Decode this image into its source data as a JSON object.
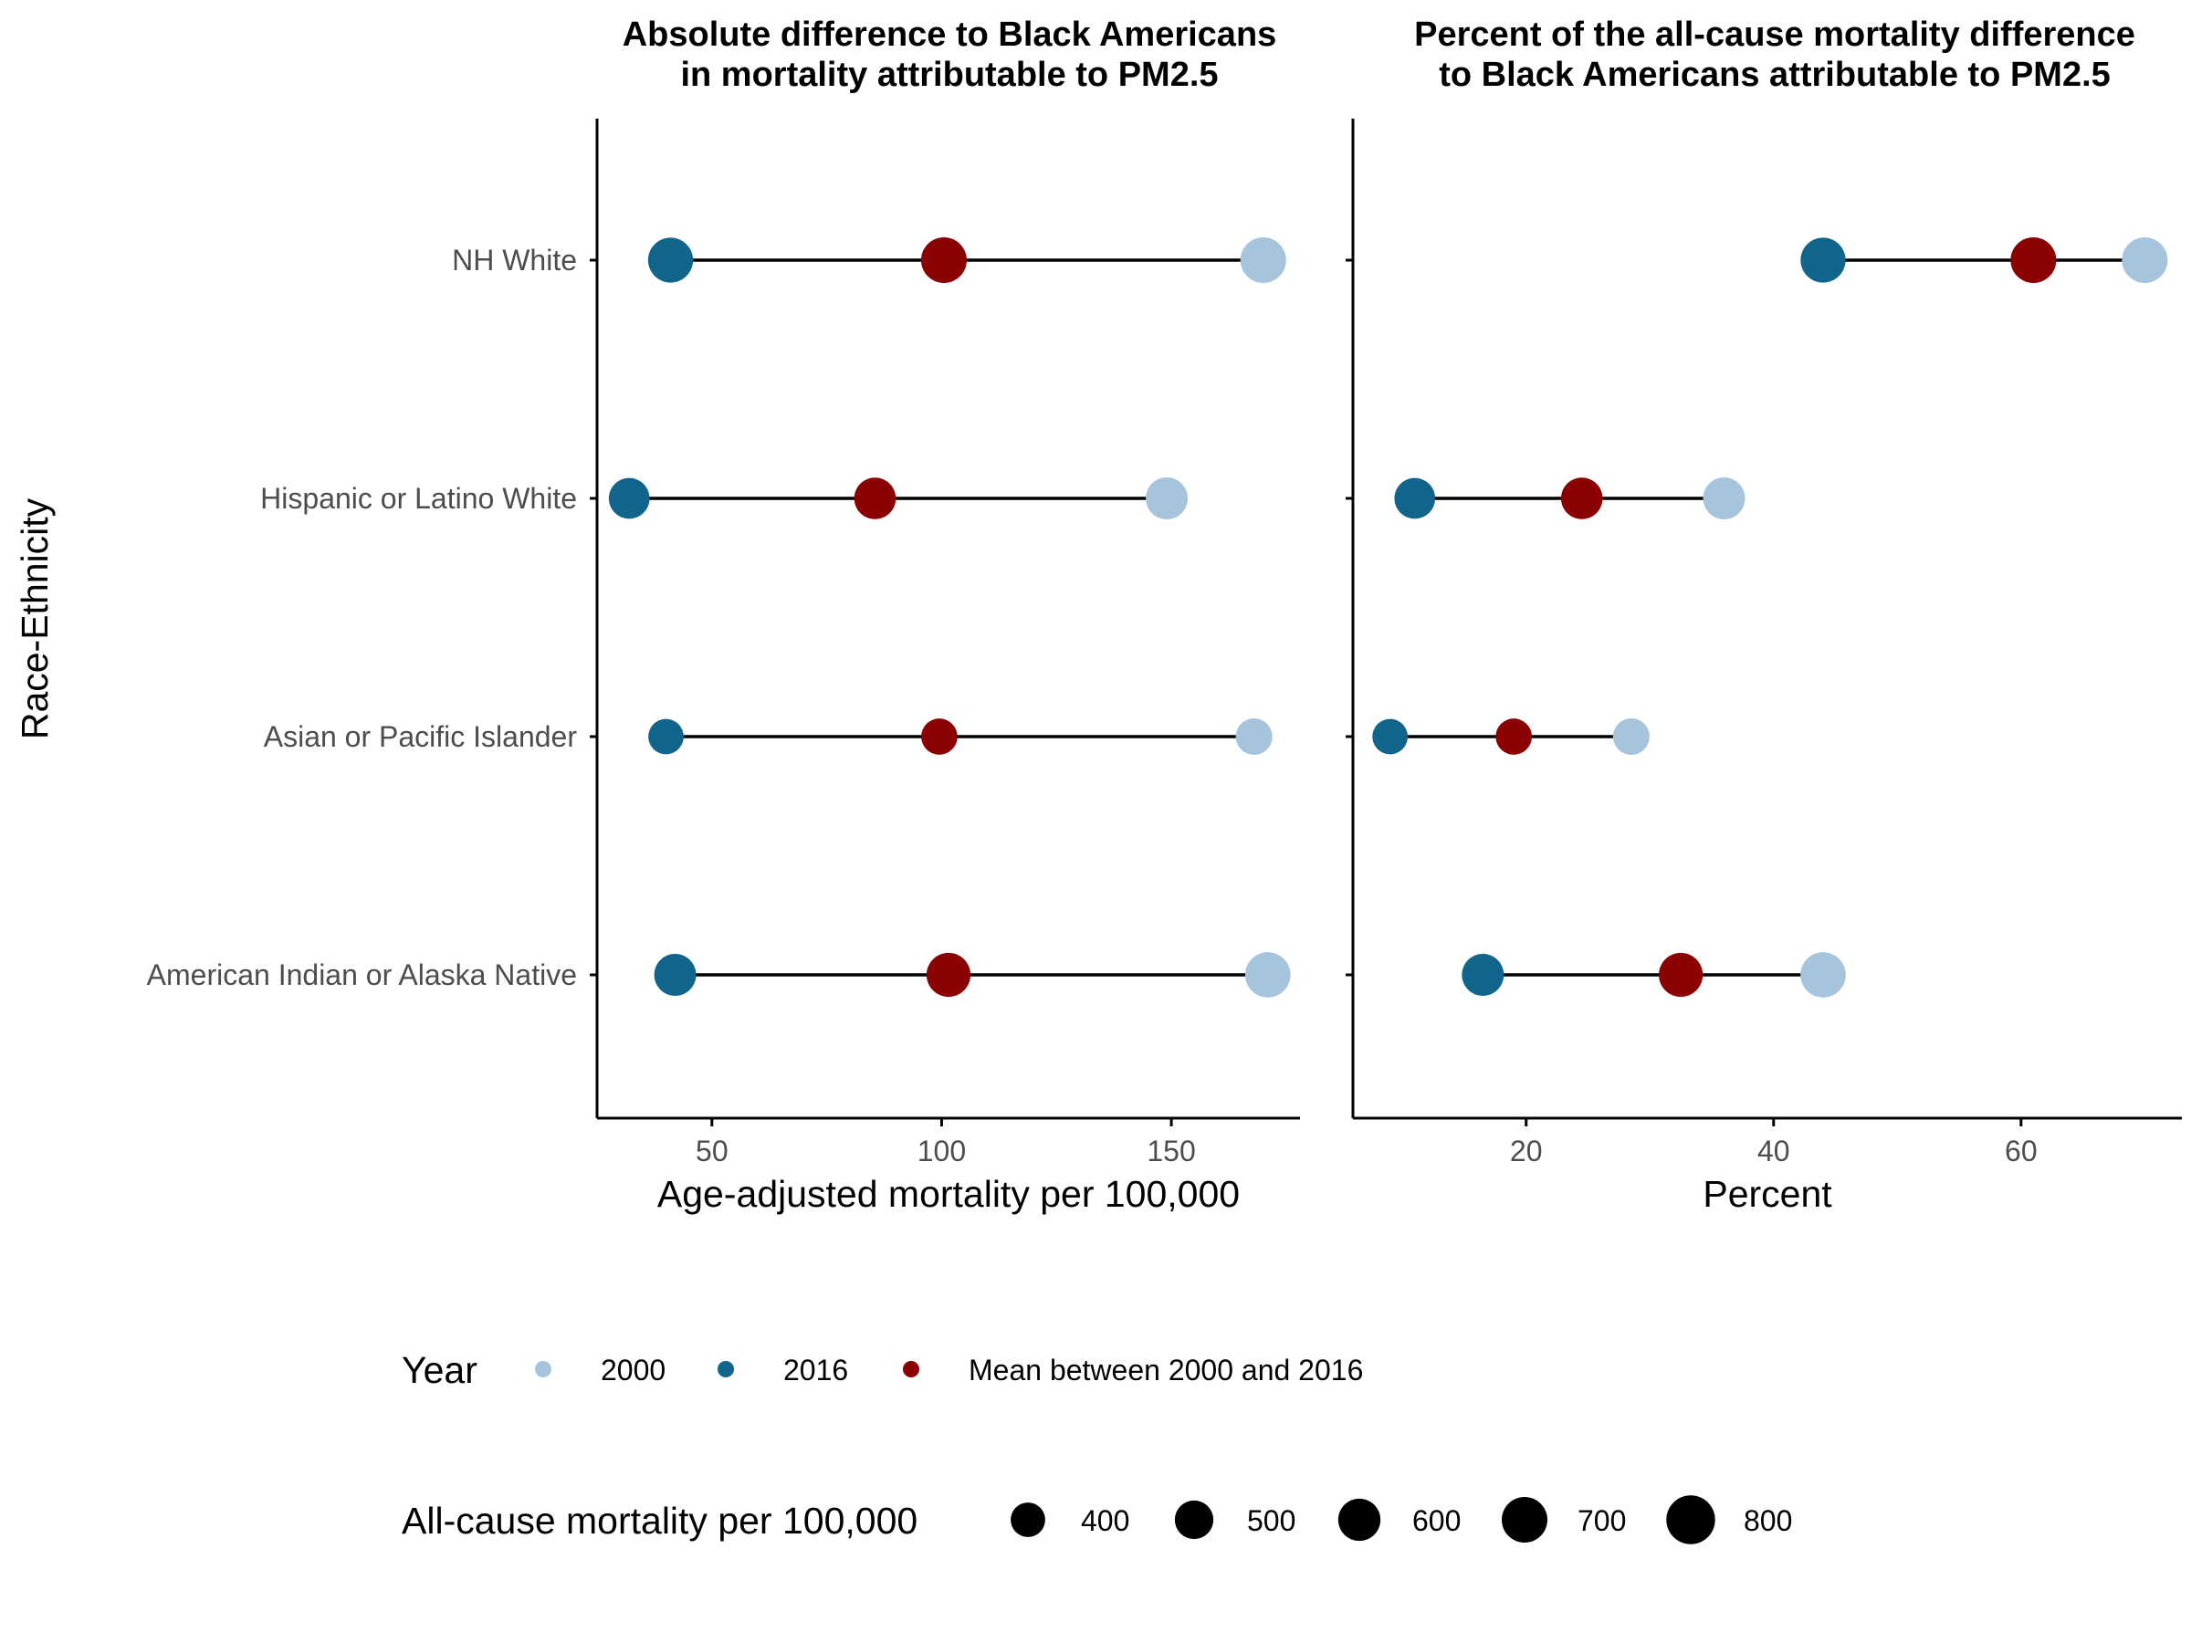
{
  "chart_data": {
    "type": "dumbbell",
    "y_axis_label": "Race-Ethnicity",
    "categories": [
      "NH White",
      "Hispanic or Latino White",
      "Asian or Pacific Islander",
      "American Indian or Alaska Native"
    ],
    "panels": [
      {
        "title_lines": [
          "Absolute difference to Black Americans",
          "in mortality attributable to PM2.5"
        ],
        "xlabel": "Age-adjusted mortality per 100,000",
        "xlim": [
          25,
          178
        ],
        "xticks": [
          50,
          100,
          150
        ],
        "rows": [
          {
            "category": "NH White",
            "v2000": 170,
            "v2016": 41,
            "mean": 100.5,
            "size_2000": 700,
            "size_2016": 680,
            "size_mean": 700
          },
          {
            "category": "Hispanic or Latino White",
            "v2000": 149,
            "v2016": 32,
            "mean": 85.5,
            "size_2000": 590,
            "size_2016": 560,
            "size_mean": 580
          },
          {
            "category": "Asian or Pacific Islander",
            "v2000": 168,
            "v2016": 40,
            "mean": 99.5,
            "size_2000": 450,
            "size_2016": 420,
            "size_mean": 440
          },
          {
            "category": "American Indian or Alaska Native",
            "v2000": 171,
            "v2016": 42,
            "mean": 101.5,
            "size_2000": 690,
            "size_2016": 590,
            "size_mean": 650
          }
        ]
      },
      {
        "title_lines": [
          "Percent of the all-cause mortality difference",
          "to Black Americans attributable to PM2.5"
        ],
        "xlabel": "Percent",
        "xlim": [
          6,
          73
        ],
        "xticks": [
          20,
          40,
          60
        ],
        "rows": [
          {
            "category": "NH White",
            "v2000": 70,
            "v2016": 44,
            "mean": 61,
            "size_2000": 700,
            "size_2016": 680,
            "size_mean": 700
          },
          {
            "category": "Hispanic or Latino White",
            "v2000": 36,
            "v2016": 11,
            "mean": 24.5,
            "size_2000": 590,
            "size_2016": 560,
            "size_mean": 580
          },
          {
            "category": "Asian or Pacific Islander",
            "v2000": 28.5,
            "v2016": 9,
            "mean": 19,
            "size_2000": 450,
            "size_2016": 420,
            "size_mean": 440
          },
          {
            "category": "American Indian or Alaska Native",
            "v2000": 44,
            "v2016": 16.5,
            "mean": 32.5,
            "size_2000": 690,
            "size_2016": 590,
            "size_mean": 650
          }
        ]
      }
    ],
    "legend_year": {
      "title": "Year",
      "items": [
        {
          "label": "2000",
          "color": "#a7c4dd"
        },
        {
          "label": "2016",
          "color": "#11648a"
        },
        {
          "label": "Mean between 2000 and 2016",
          "color": "#8b0000"
        }
      ]
    },
    "legend_size": {
      "title": "All-cause mortality per 100,000",
      "items": [
        {
          "label": "400",
          "value": 400
        },
        {
          "label": "500",
          "value": 500
        },
        {
          "label": "600",
          "value": 600
        },
        {
          "label": "700",
          "value": 700
        },
        {
          "label": "800",
          "value": 800
        }
      ]
    },
    "colors": {
      "y2000": "#a7c4dd",
      "y2016": "#11648a",
      "mean": "#8b0000",
      "segment": "#000000",
      "axis": "#000000"
    },
    "grid": false,
    "legend_position": "bottom"
  }
}
